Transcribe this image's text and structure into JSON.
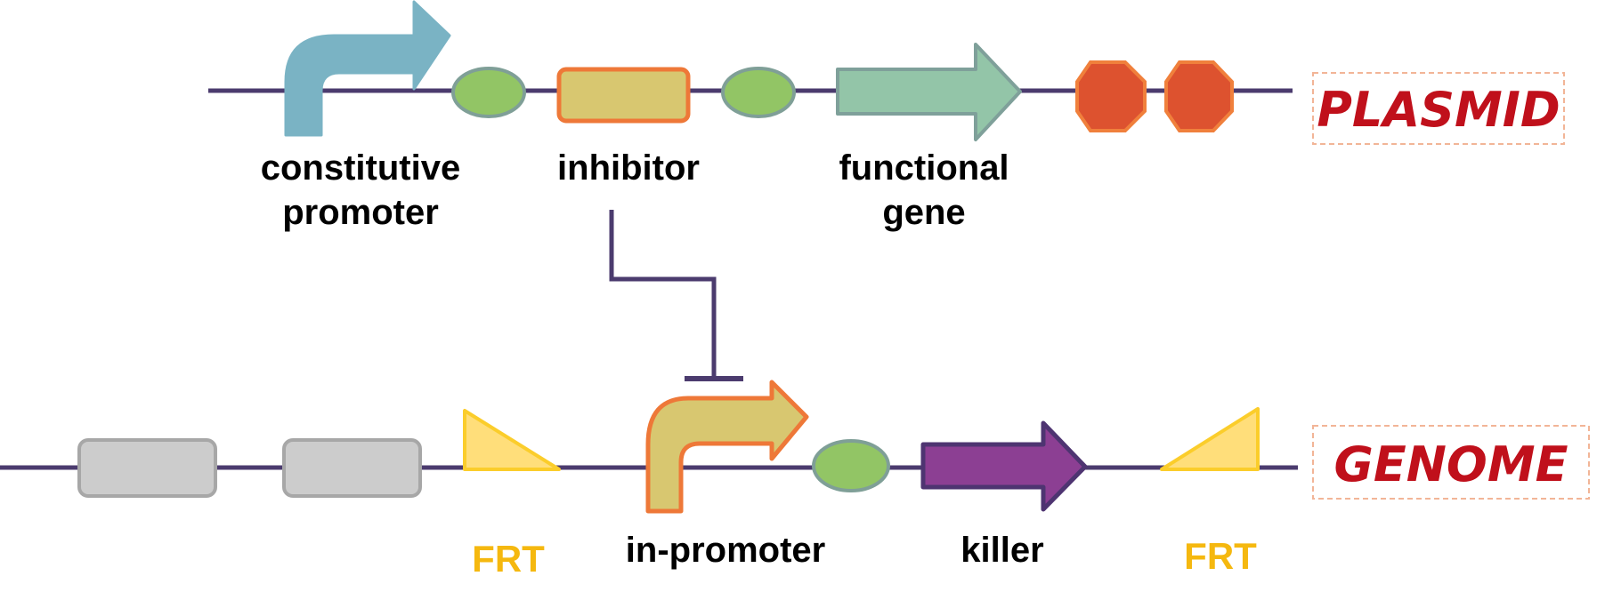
{
  "plasmid": {
    "title": "PLASMID",
    "labels": {
      "constitutive_promoter_line1": "constitutive",
      "constitutive_promoter_line2": "promoter",
      "inhibitor": "inhibitor",
      "functional_gene_line1": "functional",
      "functional_gene_line2": "gene"
    }
  },
  "genome": {
    "title": "GENOME",
    "labels": {
      "frt_left": "FRT",
      "in_promoter": "in-promoter",
      "killer": "killer",
      "frt_right": "FRT"
    }
  },
  "icons": {
    "constitutive_promoter": "bent-arrow-icon",
    "rbs": "ellipse-rbs-icon",
    "inhibitor": "rounded-rectangle-icon",
    "functional_gene": "block-arrow-icon",
    "terminator": "octagon-stop-icon",
    "genome_block": "rounded-rectangle-icon",
    "frt_site": "triangle-icon",
    "in_promoter": "bent-arrow-icon",
    "killer_gene": "block-arrow-icon",
    "repression": "t-bar-inhibition-icon"
  },
  "colors": {
    "backbone": "#4b3b6e",
    "constitutive_promoter": "#7ab3c4",
    "rbs_fill": "#92c565",
    "rbs_stroke": "#7f9f97",
    "inhibitor_fill": "#d8c770",
    "inhibitor_stroke": "#ee7838",
    "functional_gene_fill": "#93c5a8",
    "functional_gene_stroke": "#7fa09a",
    "terminator_fill": "#dd522f",
    "terminator_stroke": "#f0803c",
    "genome_block_fill": "#cccccc",
    "genome_block_stroke": "#a7a7a7",
    "frt_fill": "#ffde7a",
    "frt_stroke": "#fbcd2b",
    "frt_text": "#f5b80f",
    "killer_fill": "#8c3f93",
    "killer_stroke": "#4e3471",
    "region_text": "#c0101b",
    "region_border": "#f2b597"
  }
}
